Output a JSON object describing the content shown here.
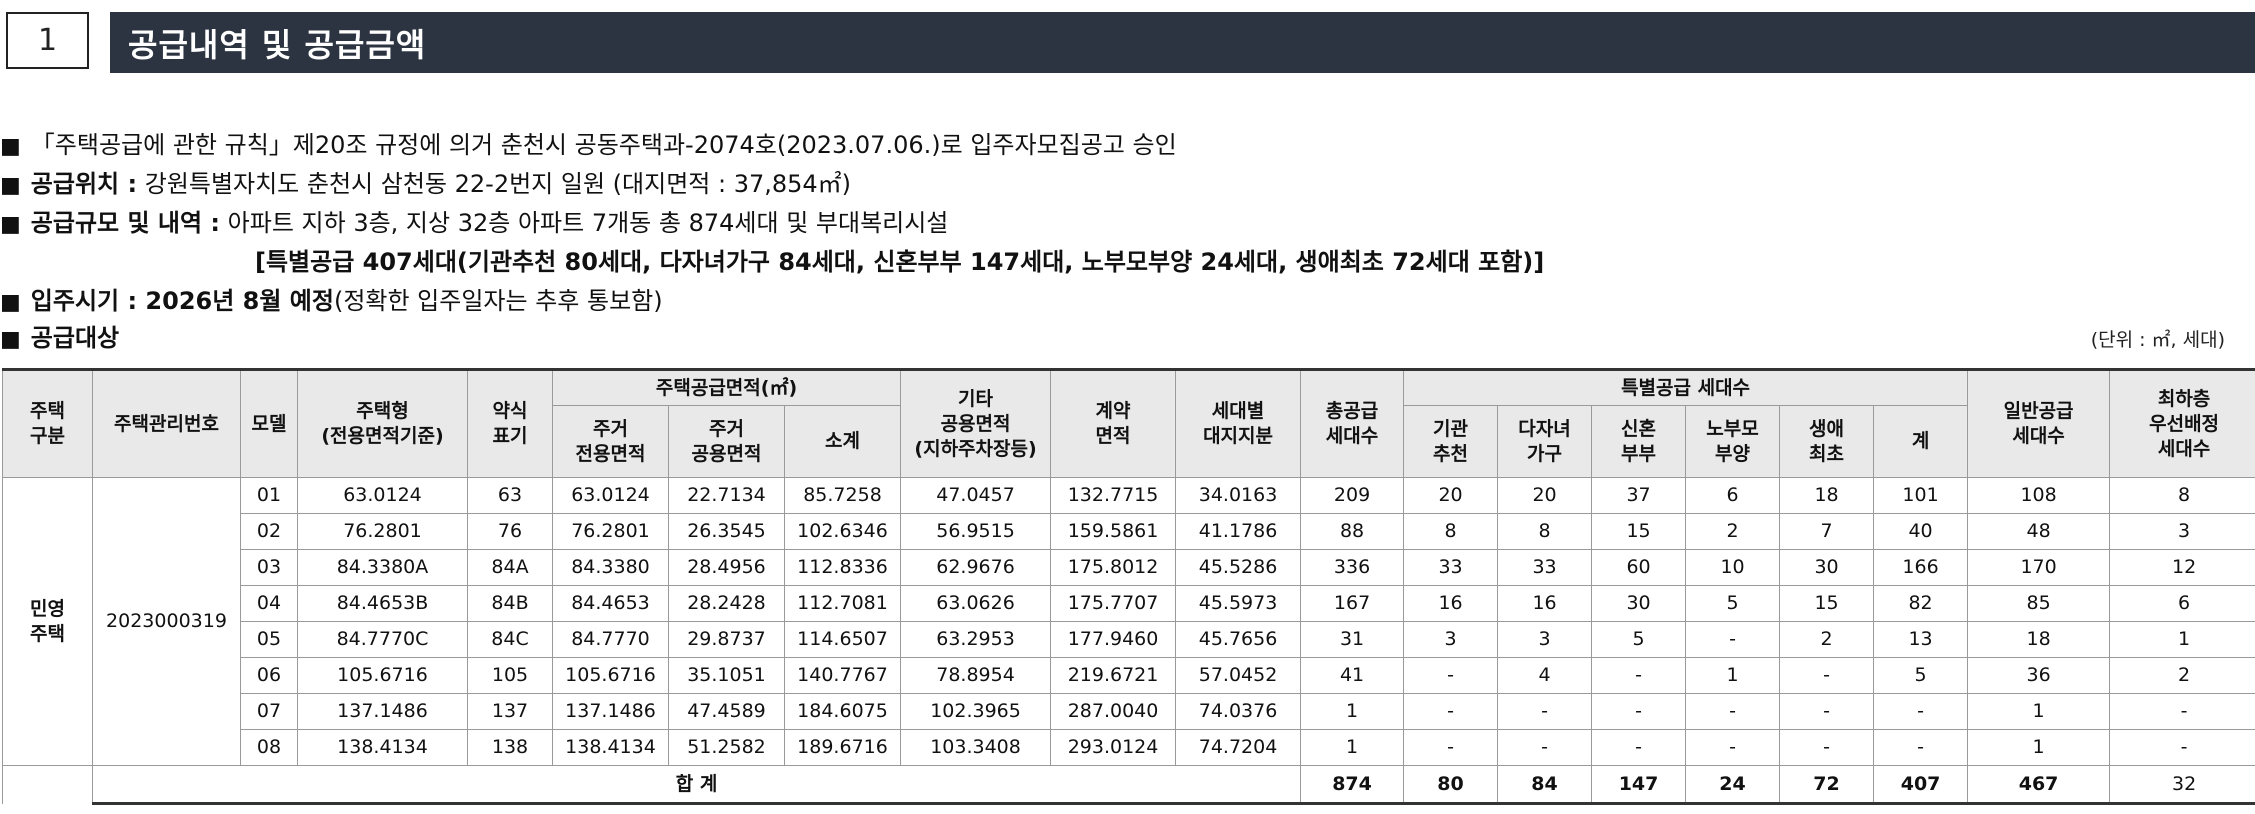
{
  "section": {
    "number": "1",
    "title": "공급내역 및 공급금액"
  },
  "bullet": "■",
  "intro_lines": {
    "approval": "「주택공급에 관한 규칙」제20조 규정에 의거 춘천시 공동주택과-2074호(2023.07.06.)로 입주자모집공고 승인",
    "location_label": "공급위치 :",
    "location_value": " 강원특별자치도 춘천시 삼천동 22-2번지 일원 (대지면적 : 37,854㎡)",
    "scale_label": "공급규모 및 내역 :",
    "scale_value": " 아파트 지하 3층, 지상 32층 아파트 7개동 총 874세대 및 부대복리시설",
    "special_supply": "[특별공급 407세대(기관추천 80세대, 다자녀가구 84세대, 신혼부부 147세대, 노부모부양 24세대, 생애최초 72세대 포함)]",
    "movein_label": "입주시기 : 2026년 8월 예정",
    "movein_value": "(정확한 입주일자는 추후 통보함)",
    "target_label": "공급대상"
  },
  "unit_note": "(단위 : ㎡, 세대)",
  "table": {
    "headers": {
      "housing_type_cat": "주택\n구분",
      "mgmt_no": "주택관리번호",
      "model": "모델",
      "housing_type": "주택형\n(전용면적기준)",
      "abbr": "약식\n표기",
      "supply_area_group": "주택공급면적(㎡)",
      "exclusive": "주거\n전용면적",
      "common": "주거\n공용면적",
      "subtotal": "소계",
      "other_common": "기타\n공용면적\n(지하주차장등)",
      "contract": "계약\n면적",
      "land_share": "세대별\n대지지분",
      "total_supply": "총공급\n세대수",
      "special_group": "특별공급 세대수",
      "sp_institution": "기관\n추천",
      "sp_multichild": "다자녀\n가구",
      "sp_newlywed": "신혼\n부부",
      "sp_elderly": "노부모\n부양",
      "sp_firsttime": "생애\n최초",
      "sp_total": "계",
      "general": "일반공급\n세대수",
      "lowest_floor": "최하층\n우선배정\n세대수"
    },
    "category": "민영\n주택",
    "mgmt_number": "2023000319",
    "rows": [
      [
        "01",
        "63.0124",
        "63",
        "63.0124",
        "22.7134",
        "85.7258",
        "47.0457",
        "132.7715",
        "34.0163",
        "209",
        "20",
        "20",
        "37",
        "6",
        "18",
        "101",
        "108",
        "8"
      ],
      [
        "02",
        "76.2801",
        "76",
        "76.2801",
        "26.3545",
        "102.6346",
        "56.9515",
        "159.5861",
        "41.1786",
        "88",
        "8",
        "8",
        "15",
        "2",
        "7",
        "40",
        "48",
        "3"
      ],
      [
        "03",
        "84.3380A",
        "84A",
        "84.3380",
        "28.4956",
        "112.8336",
        "62.9676",
        "175.8012",
        "45.5286",
        "336",
        "33",
        "33",
        "60",
        "10",
        "30",
        "166",
        "170",
        "12"
      ],
      [
        "04",
        "84.4653B",
        "84B",
        "84.4653",
        "28.2428",
        "112.7081",
        "63.0626",
        "175.7707",
        "45.5973",
        "167",
        "16",
        "16",
        "30",
        "5",
        "15",
        "82",
        "85",
        "6"
      ],
      [
        "05",
        "84.7770C",
        "84C",
        "84.7770",
        "29.8737",
        "114.6507",
        "63.2953",
        "177.9460",
        "45.7656",
        "31",
        "3",
        "3",
        "5",
        "-",
        "2",
        "13",
        "18",
        "1"
      ],
      [
        "06",
        "105.6716",
        "105",
        "105.6716",
        "35.1051",
        "140.7767",
        "78.8954",
        "219.6721",
        "57.0452",
        "41",
        "-",
        "4",
        "-",
        "1",
        "-",
        "5",
        "36",
        "2"
      ],
      [
        "07",
        "137.1486",
        "137",
        "137.1486",
        "47.4589",
        "184.6075",
        "102.3965",
        "287.0040",
        "74.0376",
        "1",
        "-",
        "-",
        "-",
        "-",
        "-",
        "-",
        "1",
        "-"
      ],
      [
        "08",
        "138.4134",
        "138",
        "138.4134",
        "51.2582",
        "189.6716",
        "103.3408",
        "293.0124",
        "74.7204",
        "1",
        "-",
        "-",
        "-",
        "-",
        "-",
        "-",
        "1",
        "-"
      ]
    ],
    "total_row": {
      "label": "합 계",
      "values": [
        "874",
        "80",
        "84",
        "147",
        "24",
        "72",
        "407",
        "467",
        "32"
      ]
    }
  }
}
